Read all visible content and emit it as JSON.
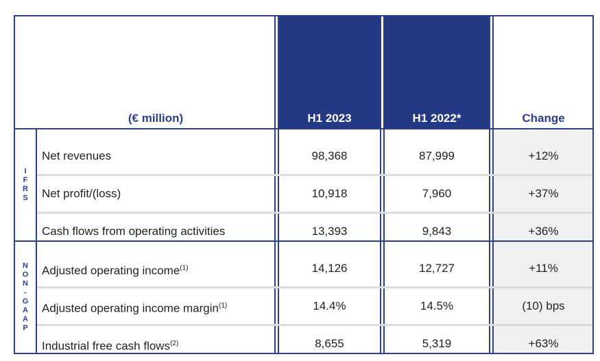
{
  "header": {
    "unit": "(€ million)",
    "columns": [
      "H1 2023",
      "H1 2022*",
      "Change"
    ]
  },
  "sections": [
    {
      "label": "IFRS",
      "rows": [
        {
          "label": "Net revenues",
          "h1_2023": "98,368",
          "h1_2022": "87,999",
          "change": "+12%"
        },
        {
          "label": "Net profit/(loss)",
          "h1_2023": "10,918",
          "h1_2022": "7,960",
          "change": "+37%"
        },
        {
          "label": "Cash flows from operating activities",
          "h1_2023": "13,393",
          "h1_2022": "9,843",
          "change": "+36%"
        }
      ]
    },
    {
      "label": "NON-GAAP",
      "rows": [
        {
          "label": "Adjusted operating income",
          "note": "(1)",
          "h1_2023": "14,126",
          "h1_2022": "12,727",
          "change": "+11%"
        },
        {
          "label": "Adjusted operating income margin",
          "note": "(1)",
          "h1_2023": "14.4%",
          "h1_2022": "14.5%",
          "change": "(10) bps"
        },
        {
          "label": "Industrial free cash flows",
          "note": "(2)",
          "h1_2023": "8,655",
          "h1_2022": "5,319",
          "change": "+63%"
        }
      ]
    }
  ]
}
